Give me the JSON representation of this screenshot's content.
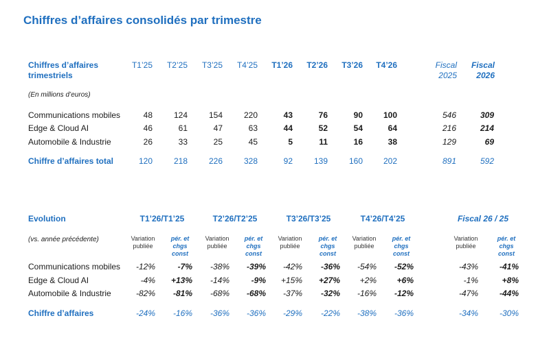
{
  "title": "Chiffres d’affaires consolidés par trimestre",
  "table1": {
    "header_label_line1": "Chiffres d’affaires",
    "header_label_line2": "trimestriels",
    "unit_note": "(En millions d’euros)",
    "quarters": [
      "T1’25",
      "T2’25",
      "T3’25",
      "T4’25",
      "T1’26",
      "T2’26",
      "T3’26",
      "T4’26"
    ],
    "fiscal_label": "Fiscal",
    "fiscal_years": [
      "2025",
      "2026"
    ],
    "rows": [
      {
        "label": "Communications mobiles",
        "values": [
          "48",
          "124",
          "154",
          "220",
          "43",
          "76",
          "90",
          "100"
        ],
        "fiscal": [
          "546",
          "309"
        ]
      },
      {
        "label": "Edge & Cloud AI",
        "values": [
          "46",
          "61",
          "47",
          "63",
          "44",
          "52",
          "54",
          "64"
        ],
        "fiscal": [
          "216",
          "214"
        ]
      },
      {
        "label": "Automobile & Industrie",
        "values": [
          "26",
          "33",
          "25",
          "45",
          "5",
          "11",
          "16",
          "38"
        ],
        "fiscal": [
          "129",
          "69"
        ]
      }
    ],
    "total": {
      "label": "Chiffre d’affaires total",
      "values": [
        "120",
        "218",
        "226",
        "328",
        "92",
        "139",
        "160",
        "202"
      ],
      "fiscal": [
        "891",
        "592"
      ]
    }
  },
  "table2": {
    "header_label": "Evolution",
    "sub_note": "(vs. année précédente)",
    "periods": [
      "T1’26/T1’25",
      "T2’26/T2’25",
      "T3’26/T3’25",
      "T4’26/T4’25",
      "Fiscal 26 / 25"
    ],
    "sub_a_line1": "Variation",
    "sub_a_line2": "publiée",
    "sub_b_line1": "pér. et",
    "sub_b_line2": "chgs",
    "sub_b_line3": "const",
    "rows": [
      {
        "label": "Communications mobiles",
        "values": [
          "-12%",
          "-7%",
          "-38%",
          "-39%",
          "-42%",
          "-36%",
          "-54%",
          "-52%",
          "-43%",
          "-41%"
        ]
      },
      {
        "label": "Edge & Cloud AI",
        "values": [
          "-4%",
          "+13%",
          "-14%",
          "-9%",
          "+15%",
          "+27%",
          "+2%",
          "+6%",
          "-1%",
          "+8%"
        ]
      },
      {
        "label": "Automobile & Industrie",
        "values": [
          "-82%",
          "-81%",
          "-68%",
          "-68%",
          "-37%",
          "-32%",
          "-16%",
          "-12%",
          "-47%",
          "-44%"
        ]
      }
    ],
    "total": {
      "label": "Chiffre d’affaires",
      "values": [
        "-24%",
        "-16%",
        "-36%",
        "-36%",
        "-29%",
        "-22%",
        "-38%",
        "-36%",
        "-34%",
        "-30%"
      ]
    }
  }
}
